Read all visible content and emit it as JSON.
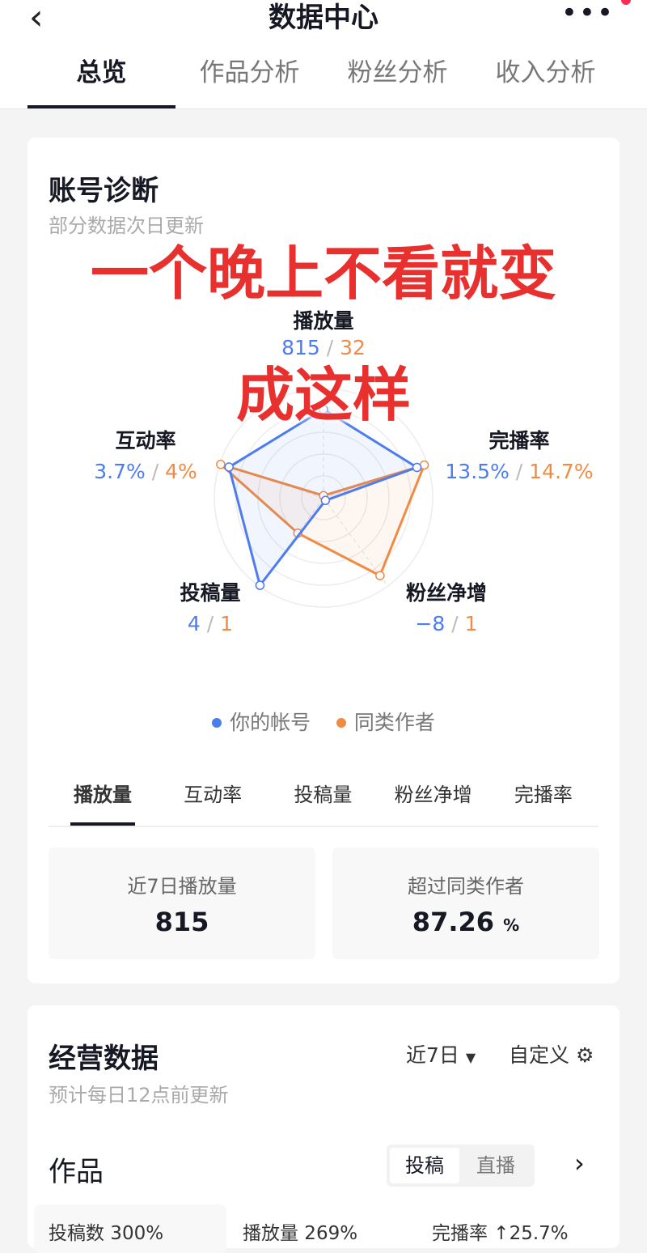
{
  "nav": {
    "title": "数据中心",
    "back_icon": "chevron-left-icon",
    "more_icon": "more-icon",
    "tabs": [
      "总览",
      "作品分析",
      "粉丝分析",
      "收入分析"
    ]
  },
  "diagnosis": {
    "title": "账号诊断",
    "subtitle": "部分数据次日更新",
    "overlay_line1": "一个晚上不看就变",
    "overlay_line2": "成这样",
    "axes": [
      {
        "label": "播放量",
        "mine": "815",
        "peer": "32",
        "mine_level": 0.81,
        "peer_level": 0.02
      },
      {
        "label": "完播率",
        "mine": "13.5%",
        "peer": "14.7%",
        "mine_level": 0.9,
        "peer_level": 0.97
      },
      {
        "label": "粉丝净增",
        "mine": "−8",
        "peer": "1",
        "mine_level": 0.03,
        "peer_level": 0.88
      },
      {
        "label": "投稿量",
        "mine": "4",
        "peer": "1",
        "mine_level": 0.99,
        "peer_level": 0.4
      },
      {
        "label": "互动率",
        "mine": "3.7%",
        "peer": "4%",
        "mine_level": 0.91,
        "peer_level": 0.99
      }
    ],
    "separator": "/",
    "legend": {
      "mine": "你的帐号",
      "peer": "同类作者"
    },
    "colors": {
      "mine": "#4d7cf0",
      "peer": "#f08b45"
    },
    "metric_tabs": [
      "播放量",
      "互动率",
      "投稿量",
      "粉丝净增",
      "完播率"
    ],
    "stats": [
      {
        "label": "近7日播放量",
        "value": "815",
        "unit": ""
      },
      {
        "label": "超过同类作者",
        "value": "87.26",
        "unit": "%"
      }
    ]
  },
  "business": {
    "title": "经营数据",
    "subtitle": "预计每日12点前更新",
    "range": "近7日",
    "custom": "自定义",
    "works": {
      "title": "作品",
      "toggle": [
        "投稿",
        "直播"
      ],
      "metrics": [
        "投稿数 300%",
        "播放量 269%",
        "完播率 ↑25.7%"
      ]
    }
  }
}
